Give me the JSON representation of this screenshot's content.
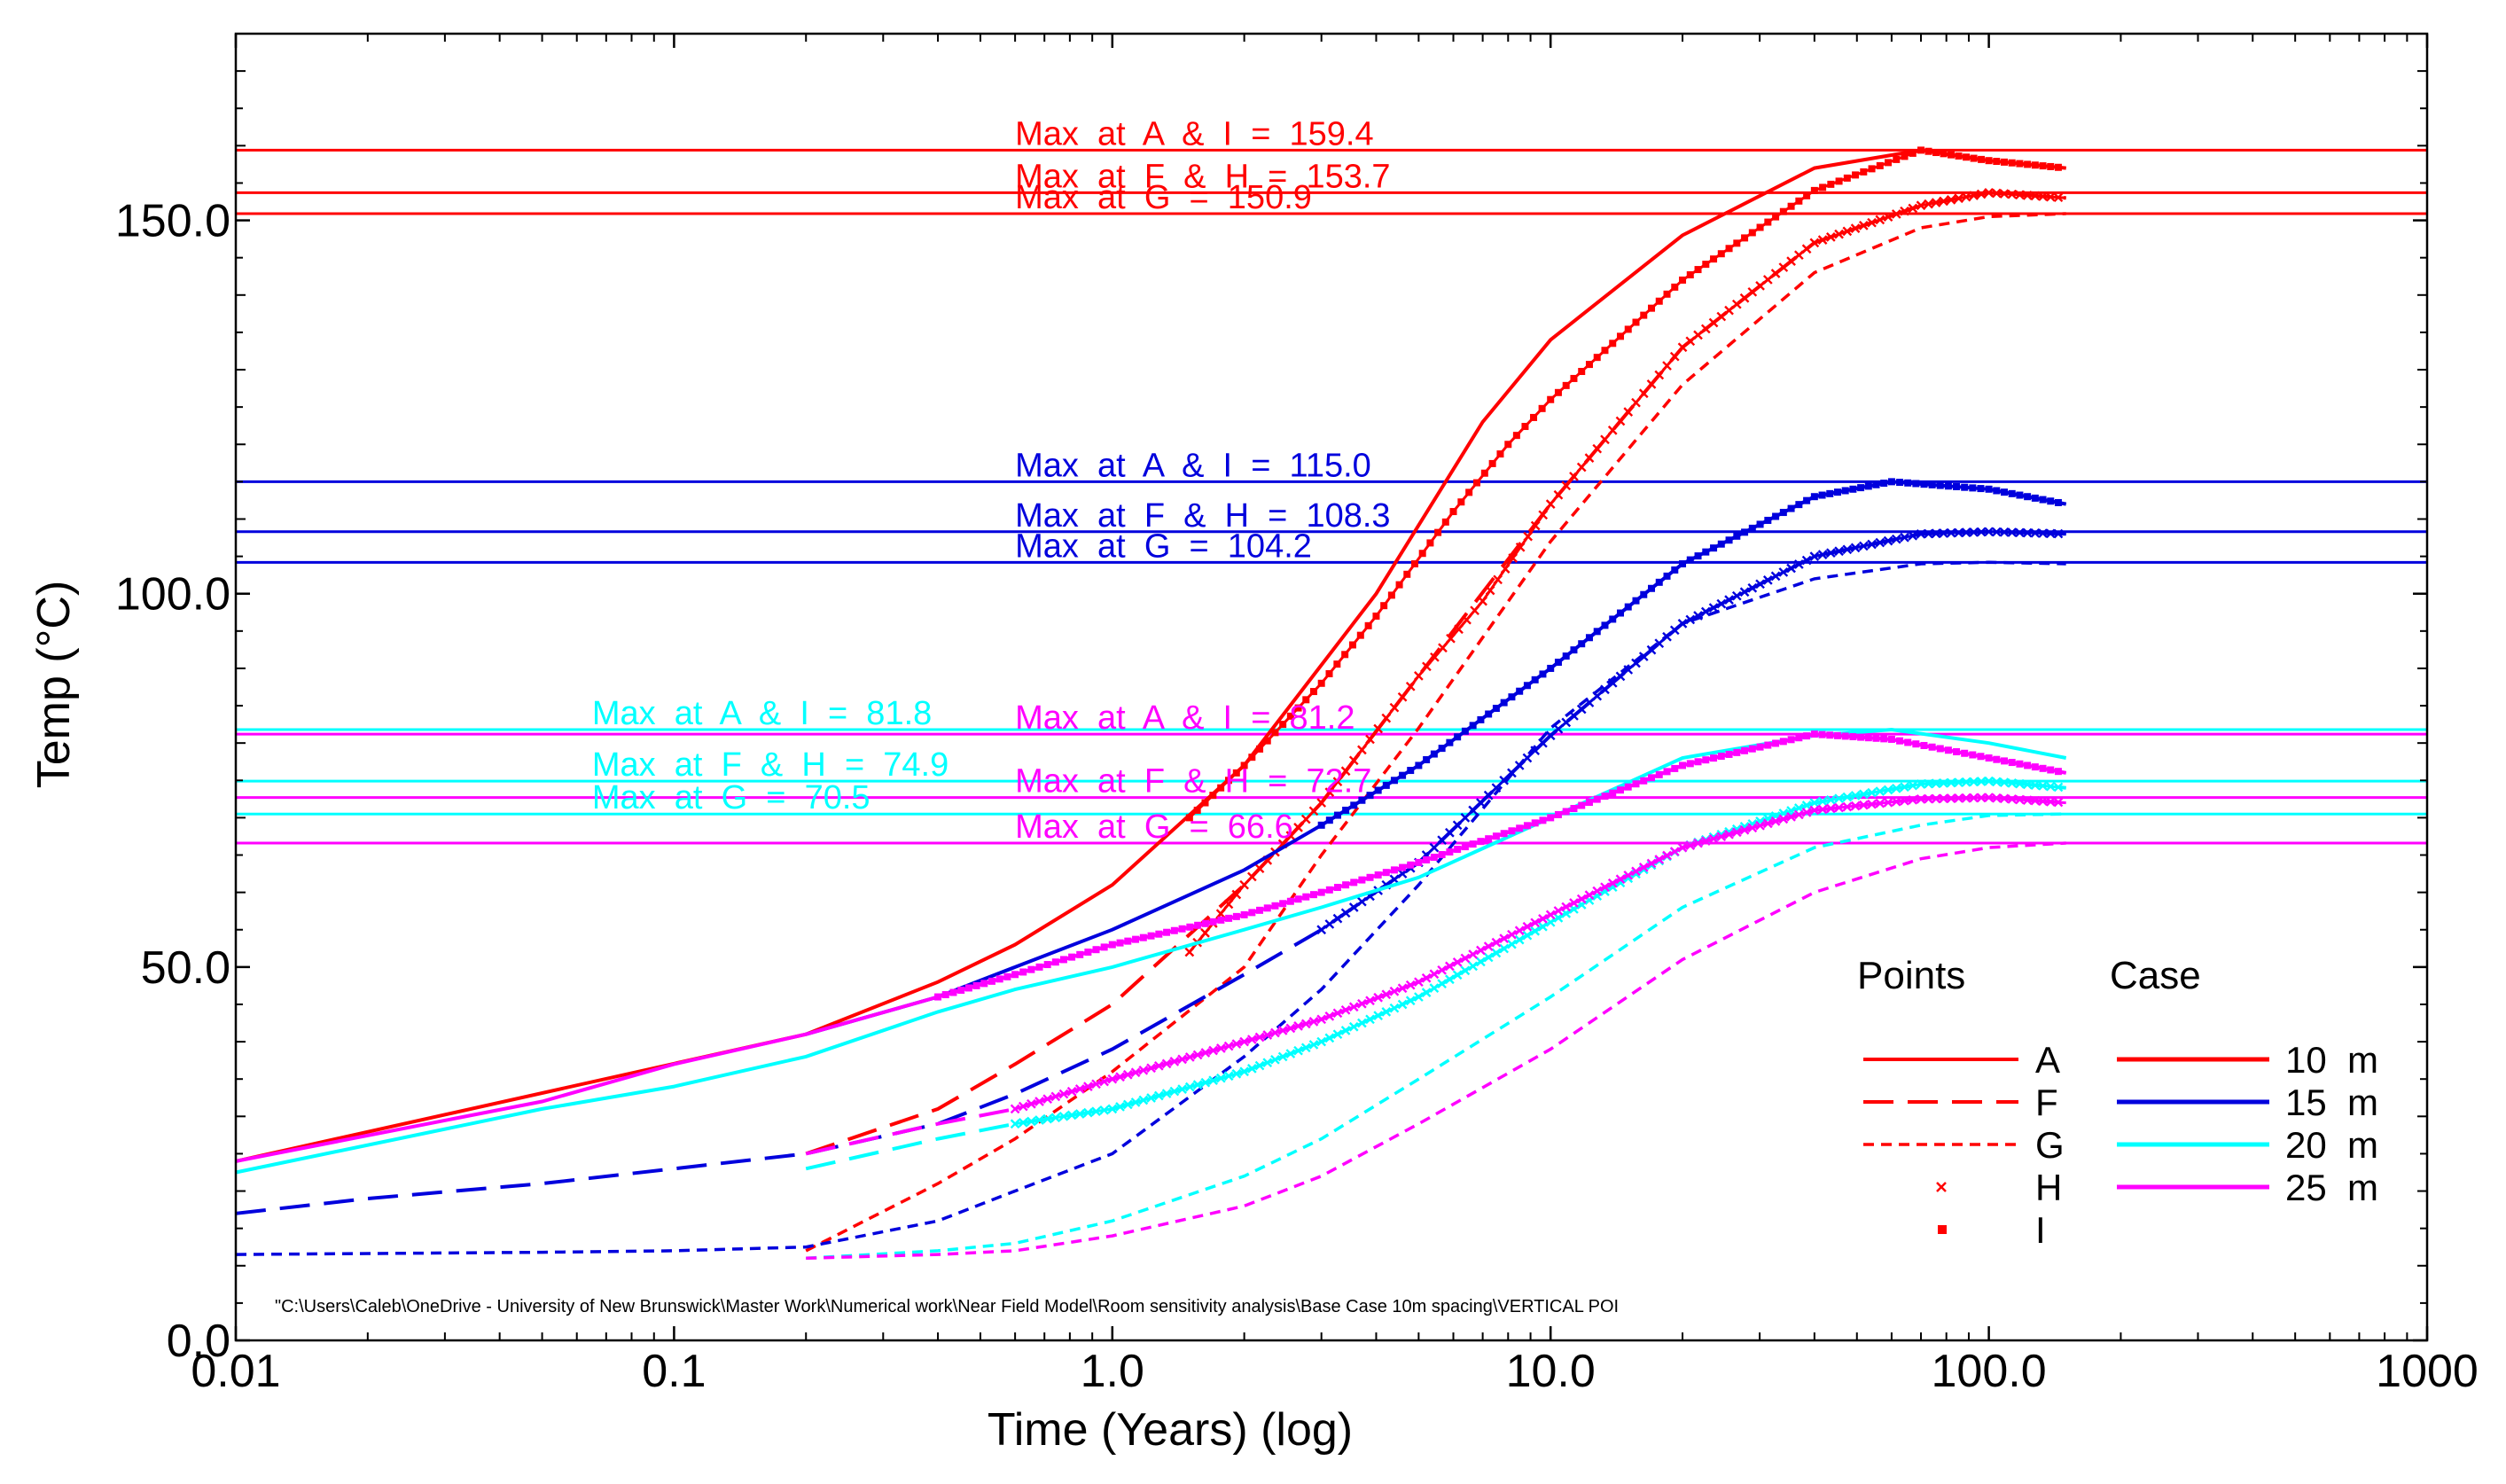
{
  "chart_data": {
    "type": "line",
    "xscale": "log",
    "xlim": [
      0.01,
      1000
    ],
    "ylim": [
      0,
      175
    ],
    "xlabel": "Time  (Years)  (log)",
    "ylabel": "Temp  (°C)",
    "x_ticks": [
      {
        "value": 0.01,
        "label": "0.01"
      },
      {
        "value": 0.1,
        "label": "0.1"
      },
      {
        "value": 1,
        "label": "1.0"
      },
      {
        "value": 10,
        "label": "10.0"
      },
      {
        "value": 100,
        "label": "100.0"
      },
      {
        "value": 1000,
        "label": "1000"
      }
    ],
    "y_ticks": [
      {
        "value": 0,
        "label": "0.0"
      },
      {
        "value": 50,
        "label": "50.0"
      },
      {
        "value": 100,
        "label": "100.0"
      },
      {
        "value": 150,
        "label": "150.0"
      }
    ],
    "file_path_note": "\"C:\\Users\\Caleb\\OneDrive - University of New Brunswick\\Master Work\\Numerical work\\Near Field Model\\Room sensitivity analysis\\Base Case 10m spacing\\VERTICAL POI",
    "colors": {
      "10 m": "#ff0000",
      "15 m": "#0000dd",
      "20 m": "#00ffff",
      "25 m": "#ff00ff"
    },
    "max_lines": [
      {
        "case": "10 m",
        "value": 159.4,
        "label": "Max  at  A  &  I  =  159.4",
        "label_x": 0.6
      },
      {
        "case": "10 m",
        "value": 153.7,
        "label": "Max  at  F  &  H  =  153.7",
        "label_x": 0.6
      },
      {
        "case": "10 m",
        "value": 150.9,
        "label": "Max  at  G  =  150.9",
        "label_x": 0.6
      },
      {
        "case": "15 m",
        "value": 115.0,
        "label": "Max  at  A  &  I  =  115.0",
        "label_x": 0.6
      },
      {
        "case": "15 m",
        "value": 108.3,
        "label": "Max  at  F  &  H  =  108.3",
        "label_x": 0.6
      },
      {
        "case": "15 m",
        "value": 104.2,
        "label": "Max  at  G  =  104.2",
        "label_x": 0.6
      },
      {
        "case": "20 m",
        "value": 81.8,
        "label": "Max  at  A  &  I  =  81.8",
        "label_x": 0.065
      },
      {
        "case": "20 m",
        "value": 74.9,
        "label": "Max  at  F  &  H  =  74.9",
        "label_x": 0.065
      },
      {
        "case": "20 m",
        "value": 70.5,
        "label": "Max  at  G  =  70.5",
        "label_x": 0.065
      },
      {
        "case": "25 m",
        "value": 81.2,
        "label": "Max  at  A  &  I  =  81.2",
        "label_x": 0.6
      },
      {
        "case": "25 m",
        "value": 72.7,
        "label": "Max  at  F  &  H  =  72.7",
        "label_x": 0.6
      },
      {
        "case": "25 m",
        "value": 66.6,
        "label": "Max  at  G  =  66.6",
        "label_x": 0.6
      }
    ],
    "series": [
      {
        "name": "10 m A",
        "case": "10 m",
        "point": "A",
        "style": "solid",
        "x": [
          0.01,
          0.2,
          0.4,
          0.6,
          1,
          2,
          4,
          7,
          10,
          20,
          40,
          70,
          100,
          150
        ],
        "y": [
          24,
          41,
          48,
          53,
          61,
          77,
          100,
          123,
          134,
          148,
          157,
          159.4,
          158,
          157
        ]
      },
      {
        "name": "10 m I",
        "case": "10 m",
        "point": "I",
        "style": "square",
        "x": [
          1.5,
          2,
          3,
          4,
          6,
          8,
          10,
          20,
          40,
          70,
          100,
          150
        ],
        "y": [
          70,
          77,
          88,
          97,
          111,
          120,
          126,
          142,
          154,
          159.4,
          158,
          157
        ]
      },
      {
        "name": "10 m F",
        "case": "10 m",
        "point": "F",
        "style": "dashed",
        "x": [
          0.2,
          0.4,
          0.6,
          1,
          2,
          3,
          5,
          10,
          20,
          40,
          70,
          100,
          150
        ],
        "y": [
          25,
          31,
          37,
          45,
          61,
          72,
          89,
          112,
          133,
          147,
          152,
          153.7,
          153
        ]
      },
      {
        "name": "10 m H",
        "case": "10 m",
        "point": "H",
        "style": "cross",
        "x": [
          1.5,
          2,
          3,
          5,
          7,
          10,
          20,
          40,
          70,
          100,
          150
        ],
        "y": [
          52,
          61,
          72,
          89,
          99,
          112,
          133,
          147,
          152,
          153.7,
          153
        ]
      },
      {
        "name": "10 m G",
        "case": "10 m",
        "point": "G",
        "style": "dotted",
        "x": [
          0.2,
          0.4,
          0.6,
          1,
          2,
          3,
          5,
          10,
          20,
          40,
          70,
          100,
          150
        ],
        "y": [
          12,
          21,
          27,
          36,
          50,
          65,
          82,
          107,
          128,
          143,
          149,
          150.5,
          150.9
        ]
      },
      {
        "name": "15 m A",
        "case": "15 m",
        "point": "A",
        "style": "solid",
        "x": [
          0.2,
          0.4,
          0.6,
          1,
          2,
          3,
          5,
          10,
          20,
          40,
          60,
          100,
          150
        ],
        "y": [
          41,
          46,
          50,
          55,
          63,
          69,
          77,
          90,
          104,
          113,
          115,
          114,
          112
        ]
      },
      {
        "name": "15 m I",
        "case": "15 m",
        "point": "I",
        "style": "square",
        "x": [
          3,
          5,
          10,
          20,
          40,
          60,
          100,
          150
        ],
        "y": [
          69,
          77,
          90,
          104,
          113,
          115,
          114,
          112
        ]
      },
      {
        "name": "15 m F",
        "case": "15 m",
        "point": "F",
        "style": "dashed",
        "x": [
          0.01,
          0.02,
          0.05,
          0.1,
          0.2,
          0.4,
          0.6,
          1,
          2,
          3,
          5,
          10,
          20,
          40,
          70,
          100,
          150
        ],
        "y": [
          17,
          19,
          21,
          23,
          25,
          29,
          33,
          39,
          49,
          55,
          64,
          81,
          96,
          105,
          108,
          108.3,
          108
        ]
      },
      {
        "name": "15 m H",
        "case": "15 m",
        "point": "H",
        "style": "cross",
        "x": [
          3,
          5,
          10,
          20,
          40,
          70,
          100,
          150
        ],
        "y": [
          55,
          64,
          81,
          96,
          105,
          108,
          108.3,
          108
        ]
      },
      {
        "name": "15 m G",
        "case": "15 m",
        "point": "G",
        "style": "dotted",
        "x": [
          0.01,
          0.05,
          0.1,
          0.2,
          0.4,
          0.6,
          1,
          2,
          3,
          5,
          10,
          20,
          40,
          70,
          100,
          150
        ],
        "y": [
          11.5,
          11.8,
          12,
          12.5,
          16,
          20,
          25,
          38,
          47,
          61,
          82,
          96,
          102,
          104,
          104.2,
          104
        ]
      },
      {
        "name": "20 m A",
        "case": "20 m",
        "point": "A",
        "style": "solid",
        "x": [
          0.01,
          0.05,
          0.1,
          0.2,
          0.4,
          0.6,
          1,
          2,
          3,
          5,
          10,
          20,
          40,
          60,
          100,
          150
        ],
        "y": [
          22.5,
          31,
          34,
          38,
          44,
          47,
          50,
          55,
          58,
          62,
          70,
          78,
          81,
          81.8,
          80,
          78
        ]
      },
      {
        "name": "20 m F",
        "case": "20 m",
        "point": "F",
        "style": "dashed",
        "x": [
          0.2,
          0.4,
          0.6,
          1,
          2,
          3,
          5,
          10,
          20,
          40,
          70,
          100,
          150
        ],
        "y": [
          23,
          27,
          29,
          31,
          36,
          40,
          46,
          56,
          66,
          72,
          74.5,
          74.9,
          74
        ]
      },
      {
        "name": "20 m H",
        "case": "20 m",
        "point": "H",
        "style": "cross",
        "x": [
          0.6,
          1,
          2,
          3,
          5,
          10,
          20,
          40,
          70,
          100,
          150
        ],
        "y": [
          29,
          31,
          36,
          40,
          46,
          56,
          66,
          72,
          74.5,
          74.9,
          74
        ]
      },
      {
        "name": "20 m G",
        "case": "20 m",
        "point": "G",
        "style": "dotted",
        "x": [
          0.2,
          0.4,
          0.6,
          1,
          2,
          3,
          5,
          10,
          20,
          40,
          70,
          100,
          150
        ],
        "y": [
          11,
          12,
          13,
          16,
          22,
          27,
          35,
          46,
          58,
          66,
          69,
          70.3,
          70.5
        ]
      },
      {
        "name": "25 m A",
        "case": "25 m",
        "point": "A",
        "style": "solid",
        "x": [
          0.01,
          0.05,
          0.1,
          0.2,
          0.4,
          0.6,
          1,
          2,
          3,
          5,
          10,
          20,
          40,
          60,
          100,
          150
        ],
        "y": [
          24,
          32,
          37,
          41,
          46,
          49,
          53,
          57,
          60,
          64,
          70,
          77,
          81.2,
          80.5,
          78,
          76
        ]
      },
      {
        "name": "25 m I",
        "case": "25 m",
        "point": "I",
        "style": "square",
        "x": [
          0.4,
          0.6,
          1,
          2,
          3,
          5,
          10,
          20,
          40,
          60,
          100,
          150
        ],
        "y": [
          46,
          49,
          53,
          57,
          60,
          64,
          70,
          77,
          81.2,
          80.5,
          78,
          76
        ]
      },
      {
        "name": "25 m F",
        "case": "25 m",
        "point": "F",
        "style": "dashed",
        "x": [
          0.2,
          0.4,
          0.6,
          1,
          2,
          3,
          5,
          10,
          20,
          40,
          70,
          100,
          150
        ],
        "y": [
          25,
          29,
          31,
          35,
          40,
          43,
          48,
          57,
          66,
          71,
          72.5,
          72.7,
          72
        ]
      },
      {
        "name": "25 m H",
        "case": "25 m",
        "point": "H",
        "style": "cross",
        "x": [
          0.6,
          1,
          2,
          3,
          5,
          10,
          20,
          40,
          70,
          100,
          150
        ],
        "y": [
          31,
          35,
          40,
          43,
          48,
          57,
          66,
          71,
          72.5,
          72.7,
          72
        ]
      },
      {
        "name": "25 m G",
        "case": "25 m",
        "point": "G",
        "style": "dotted",
        "x": [
          0.2,
          0.4,
          0.6,
          1,
          2,
          3,
          5,
          10,
          20,
          40,
          70,
          100,
          150
        ],
        "y": [
          11,
          11.5,
          12,
          14,
          18,
          22,
          29,
          39,
          51,
          60,
          64.5,
          66,
          66.6
        ]
      }
    ],
    "legend": {
      "position": "bottom-right",
      "points_title": "Points",
      "case_title": "Case",
      "points": [
        {
          "label": "A",
          "style": "solid"
        },
        {
          "label": "F",
          "style": "dashed"
        },
        {
          "label": "G",
          "style": "dotted"
        },
        {
          "label": "H",
          "style": "cross"
        },
        {
          "label": "I",
          "style": "square"
        }
      ],
      "cases": [
        {
          "label": "10  m",
          "case": "10 m"
        },
        {
          "label": "15  m",
          "case": "15 m"
        },
        {
          "label": "20  m",
          "case": "20 m"
        },
        {
          "label": "25  m",
          "case": "25 m"
        }
      ]
    }
  }
}
